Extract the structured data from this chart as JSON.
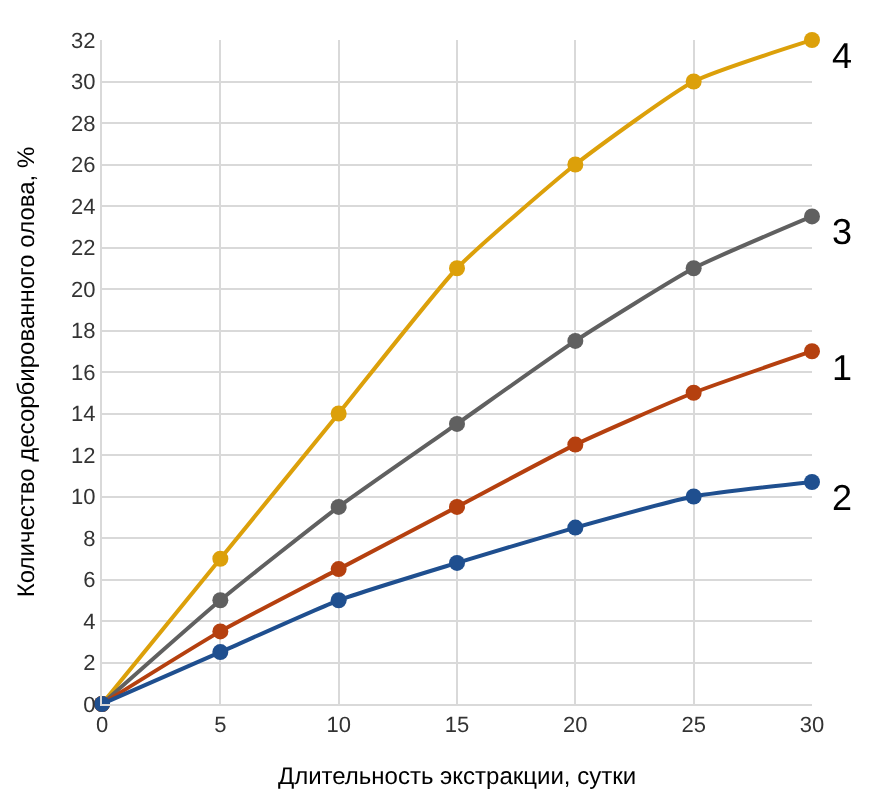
{
  "chart_data": {
    "type": "line",
    "xlabel": "Длительность экстракции, сутки",
    "ylabel": "Количество десорбированного олова, %",
    "x": [
      0,
      5,
      10,
      15,
      20,
      25,
      30
    ],
    "series": [
      {
        "name": "4",
        "color": "#dca00a",
        "values": [
          0,
          7,
          14,
          21,
          26,
          30,
          32
        ]
      },
      {
        "name": "3",
        "color": "#606060",
        "values": [
          0,
          5,
          9.5,
          13.5,
          17.5,
          21,
          23.5
        ]
      },
      {
        "name": "1",
        "color": "#b5400f",
        "values": [
          0,
          3.5,
          6.5,
          9.5,
          12.5,
          15,
          17
        ]
      },
      {
        "name": "2",
        "color": "#1f4f8f",
        "values": [
          0,
          2.5,
          5,
          6.8,
          8.5,
          10,
          10.7
        ]
      }
    ],
    "xlim": [
      0,
      30
    ],
    "xticks": [
      0,
      5,
      10,
      15,
      20,
      25,
      30
    ],
    "ylim": [
      0,
      32
    ],
    "yticks": [
      0,
      2,
      4,
      6,
      8,
      10,
      12,
      14,
      16,
      18,
      20,
      22,
      24,
      26,
      28,
      30,
      32
    ],
    "grid": true,
    "legend": false,
    "marker": "circle",
    "line_style": "solid"
  }
}
